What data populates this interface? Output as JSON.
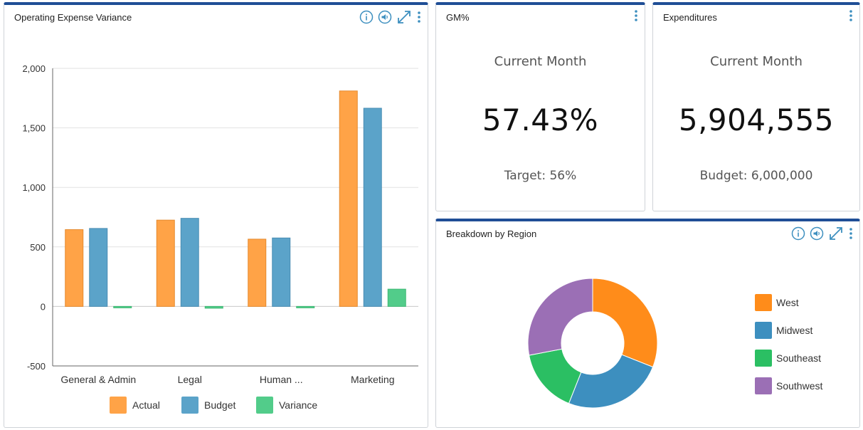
{
  "opex": {
    "title": "Operating Expense Variance",
    "legend": [
      "Actual",
      "Budget",
      "Variance"
    ]
  },
  "gm": {
    "title": "GM%",
    "subtitle": "Current Month",
    "value": "57.43%",
    "target": "Target: 56%"
  },
  "expenditures": {
    "title": "Expenditures",
    "subtitle": "Current Month",
    "value": "5,904,555",
    "budget": "Budget: 6,000,000"
  },
  "region": {
    "title": "Breakdown by Region"
  },
  "colors": {
    "header": "#1f4e96",
    "actual": "#ffa347",
    "budget": "#5ba3c9",
    "variance": "#52cc8a",
    "west": "#ff8c1a",
    "midwest": "#3d8fbf",
    "southeast": "#2bbf63",
    "southwest": "#9b6fb5",
    "icon": "#3d8fbf"
  },
  "chart_data": [
    {
      "type": "bar",
      "title": "Operating Expense Variance",
      "categories": [
        "General & Admin",
        "Legal",
        "Human ...",
        "Marketing"
      ],
      "series": [
        {
          "name": "Actual",
          "values": [
            645,
            725,
            565,
            1810
          ]
        },
        {
          "name": "Budget",
          "values": [
            655,
            740,
            575,
            1665
          ]
        },
        {
          "name": "Variance",
          "values": [
            -10,
            -15,
            -10,
            145
          ]
        }
      ],
      "ylim": [
        -500,
        2000
      ],
      "yticks": [
        "-500",
        "0",
        "500",
        "1,000",
        "1,500",
        "2,000"
      ],
      "ytick_values": [
        -500,
        0,
        500,
        1000,
        1500,
        2000
      ],
      "grid": true,
      "legend": "bottom"
    },
    {
      "type": "pie",
      "title": "Breakdown by Region",
      "labels": [
        "West",
        "Midwest",
        "Southeast",
        "Southwest"
      ],
      "values": [
        31,
        25,
        16,
        28
      ],
      "donut": true,
      "legend": "right"
    }
  ]
}
